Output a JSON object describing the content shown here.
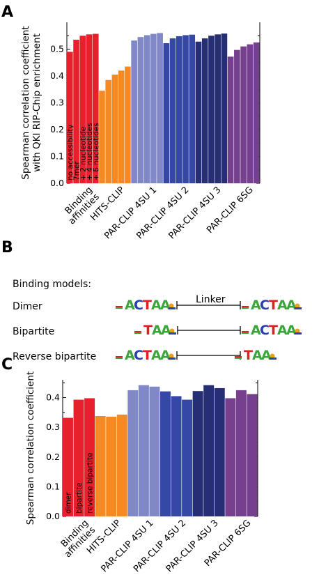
{
  "panels": {
    "a": {
      "letter": "A"
    },
    "b": {
      "letter": "B"
    },
    "c": {
      "letter": "C"
    }
  },
  "chart_data": [
    {
      "type": "bar",
      "panel": "A",
      "ylabel_lines": [
        "Spearman correlation coefficient",
        "with QKI RIP-Chip enrichment"
      ],
      "ylim": [
        0,
        0.6
      ],
      "yticks": [
        0.0,
        0.1,
        0.2,
        0.3,
        0.4,
        0.5
      ],
      "ytick_labels": [
        "0.0",
        "0.1",
        "0.2",
        "0.3",
        "0.4",
        "0.5"
      ],
      "groups": [
        {
          "name": "Binding affinities",
          "label_lines": [
            "Binding",
            "affinities"
          ],
          "color": "#e8202c",
          "bar_labels": [
            "no accessibility",
            "7mer",
            "+ 2 nucleotide",
            "+ 4 nucleotides",
            "+ 6 nucleotides"
          ],
          "values": [
            0.49,
            0.535,
            0.55,
            0.555,
            0.557
          ]
        },
        {
          "name": "HITS-CLIP",
          "label_lines": [
            "HITS-CLIP"
          ],
          "color": "#f58a22",
          "values": [
            0.345,
            0.385,
            0.405,
            0.42,
            0.435
          ]
        },
        {
          "name": "PAR-CLIP 4SU 1",
          "label_lines": [
            "PAR-CLIP 4SU 1"
          ],
          "color": "#8088c8",
          "values": [
            0.532,
            0.545,
            0.552,
            0.557,
            0.56
          ]
        },
        {
          "name": "PAR-CLIP 4SU 2",
          "label_lines": [
            "PAR-CLIP 4SU 2"
          ],
          "color": "#3548a6",
          "values": [
            0.522,
            0.54,
            0.548,
            0.552,
            0.554
          ]
        },
        {
          "name": "PAR-CLIP 4SU 3",
          "label_lines": [
            "PAR-CLIP 4SU 3"
          ],
          "color": "#262e74",
          "values": [
            0.528,
            0.54,
            0.55,
            0.555,
            0.558
          ]
        },
        {
          "name": "PAR-CLIP 6SG",
          "label_lines": [
            "PAR-CLIP 6SG"
          ],
          "color": "#76408e",
          "values": [
            0.472,
            0.497,
            0.51,
            0.518,
            0.525
          ]
        }
      ]
    },
    {
      "type": "bar",
      "panel": "C",
      "ylabel_lines": [
        "Spearman correlation coefficient"
      ],
      "ylim": [
        0,
        0.46
      ],
      "yticks": [
        0.0,
        0.1,
        0.2,
        0.3,
        0.4
      ],
      "ytick_labels": [
        "0.0",
        "0.1",
        "0.2",
        "0.3",
        "0.4"
      ],
      "groups": [
        {
          "name": "Binding affinities",
          "label_lines": [
            "Binding",
            "affinities"
          ],
          "color": "#e8202c",
          "bar_labels": [
            "dimer",
            "bipartite",
            "reverse bipartite"
          ],
          "values": [
            0.332,
            0.393,
            0.398
          ]
        },
        {
          "name": "HITS-CLIP",
          "label_lines": [
            "HITS-CLIP"
          ],
          "color": "#f58a22",
          "values": [
            0.338,
            0.336,
            0.343
          ]
        },
        {
          "name": "PAR-CLIP 4SU 1",
          "label_lines": [
            "PAR-CLIP 4SU 1"
          ],
          "color": "#8088c8",
          "values": [
            0.425,
            0.442,
            0.437
          ]
        },
        {
          "name": "PAR-CLIP 4SU 2",
          "label_lines": [
            "PAR-CLIP 4SU 2"
          ],
          "color": "#3548a6",
          "values": [
            0.421,
            0.405,
            0.393
          ]
        },
        {
          "name": "PAR-CLIP 4SU 3",
          "label_lines": [
            "PAR-CLIP 4SU 3"
          ],
          "color": "#262e74",
          "values": [
            0.422,
            0.442,
            0.432
          ]
        },
        {
          "name": "PAR-CLIP 6SG",
          "label_lines": [
            "PAR-CLIP 6SG"
          ],
          "color": "#76408e",
          "values": [
            0.398,
            0.425,
            0.412
          ]
        }
      ]
    }
  ],
  "binding_models": {
    "heading": "Binding models:",
    "linker_label": "Linker",
    "rows": [
      {
        "name": "Dimer",
        "left_motif": "ACTAA",
        "right_motif": "ACTAA",
        "linker": true
      },
      {
        "name": "Bipartite",
        "left_motif": "TAA",
        "right_motif": "ACTAA",
        "linker": false
      },
      {
        "name": "Reverse bipartite",
        "left_motif": "ACTAA",
        "right_motif": "TAA",
        "linker": false
      }
    ],
    "nucleotide_colors": {
      "A": "#3aa63a",
      "C": "#2a3fb0",
      "T": "#e02020",
      "G": "#e8a020"
    }
  }
}
